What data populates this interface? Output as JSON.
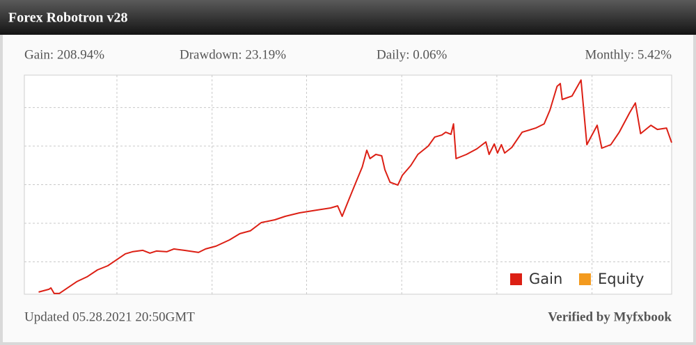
{
  "header": {
    "title": "Forex Robotron v28"
  },
  "stats": [
    "Gain: 208.94%",
    "Drawdown: 23.19%",
    "Daily: 0.06%",
    "Monthly: 5.42%"
  ],
  "chart_data": {
    "type": "line",
    "x": [
      2.2,
      3.8,
      4.1,
      4.6,
      5.4,
      6.5,
      8.1,
      9.7,
      11.3,
      12.9,
      14.5,
      15.6,
      16.7,
      18.3,
      19.4,
      20.4,
      22.0,
      23.1,
      24.7,
      26.9,
      28.0,
      29.6,
      31.7,
      33.3,
      34.9,
      36.6,
      38.7,
      40.3,
      42.5,
      45.2,
      47.3,
      48.4,
      49.1,
      50.0,
      51.1,
      52.2,
      52.9,
      53.4,
      54.3,
      55.2,
      55.7,
      56.5,
      57.7,
      58.4,
      59.7,
      60.8,
      62.4,
      63.4,
      64.5,
      65.1,
      65.9,
      66.3,
      66.7,
      68.3,
      69.9,
      71.3,
      71.8,
      72.6,
      73.1,
      73.7,
      74.2,
      75.3,
      76.9,
      79.0,
      80.3,
      81.2,
      82.3,
      82.8,
      83.1,
      84.6,
      86.0,
      86.9,
      88.5,
      89.2,
      90.6,
      91.9,
      93.5,
      94.4,
      95.2,
      96.8,
      97.8,
      99.2,
      100
    ],
    "series": [
      {
        "name": "Gain",
        "color": "#dc1f14",
        "values": [
          10.8,
          14.4,
          16.2,
          9.0,
          9.0,
          15.3,
          24.3,
          30.6,
          39.6,
          45.0,
          54.1,
          60.4,
          63.1,
          64.9,
          61.3,
          64.0,
          63.1,
          66.7,
          64.9,
          62.2,
          66.7,
          70.3,
          78.4,
          86.5,
          90.1,
          100.9,
          104.5,
          109.0,
          113.5,
          117.1,
          119.8,
          122.5,
          109.0,
          127.9,
          150.5,
          173.0,
          194.6,
          183.8,
          189.2,
          187.4,
          169.4,
          153.2,
          149.5,
          162.2,
          174.8,
          189.2,
          200,
          211.7,
          214.4,
          218.0,
          215.3,
          228.8,
          183.8,
          189.2,
          196.4,
          205.4,
          189.2,
          202.7,
          191.0,
          201.8,
          191.0,
          198.2,
          218.0,
          223.4,
          228.8,
          246.8,
          277.5,
          281.1,
          260.4,
          264.9,
          285.6,
          201.8,
          227.0,
          197.3,
          201.8,
          218.0,
          243.2,
          255.9,
          216.2,
          227.0,
          221.6,
          223.4,
          204.5
        ]
      },
      {
        "name": "Equity",
        "color": "#f39a1e",
        "values": [
          null,
          null,
          null,
          null,
          null,
          null,
          null,
          null,
          null,
          null,
          null,
          null,
          null,
          null,
          null,
          null,
          null,
          null,
          null,
          null,
          null,
          null,
          null,
          null,
          null,
          null,
          null,
          null,
          null,
          null,
          null,
          null,
          null,
          null,
          null,
          null,
          null,
          null,
          null,
          null,
          null,
          null,
          null,
          null,
          null,
          null,
          null,
          null,
          null,
          null,
          null,
          null,
          null,
          null,
          null,
          null,
          null,
          null,
          null,
          null,
          null,
          null,
          null,
          null,
          null,
          null,
          null,
          null,
          null,
          null,
          null,
          null,
          null,
          null,
          null,
          null,
          null,
          null,
          null,
          null,
          null,
          null,
          null
        ]
      }
    ],
    "xlim": [
      0,
      100
    ],
    "xticks": [
      14.3,
      29.0,
      43.6,
      58.3,
      73.0,
      87.7
    ],
    "ylim": [
      8,
      292
    ],
    "yticks": [
      50,
      100,
      150,
      200,
      250
    ],
    "grid": true,
    "legend": "lower right"
  },
  "footer": {
    "updated": "Updated 05.28.2021 20:50GMT",
    "verified": "Verified by Myfxbook"
  }
}
